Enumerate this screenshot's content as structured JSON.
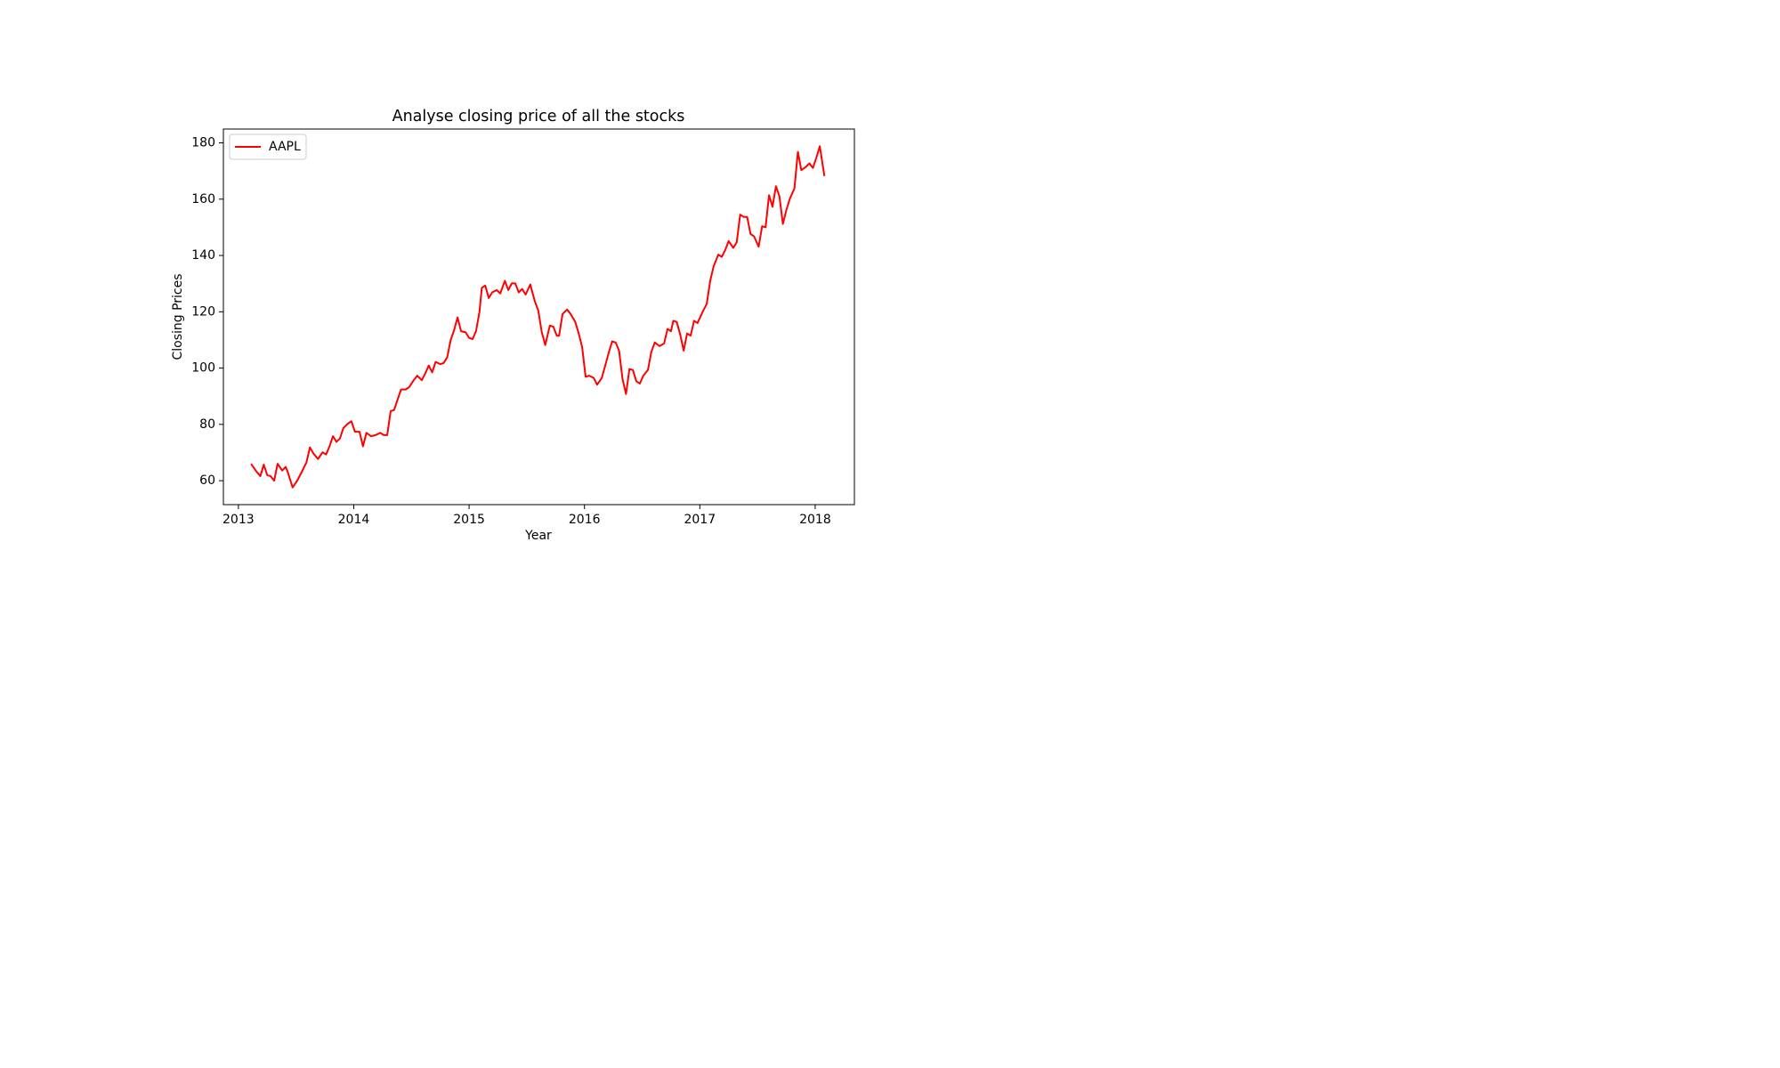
{
  "chart_data": {
    "type": "line",
    "title": "Analyse closing price of all the stocks",
    "x_label": "Year",
    "y_label": "Closing Prices",
    "xlim": [
      2012.87,
      2018.34
    ],
    "ylim": [
      51.5,
      184.9
    ],
    "xticks": [
      2013,
      2014,
      2015,
      2016,
      2017,
      2018
    ],
    "yticks": [
      60,
      80,
      100,
      120,
      140,
      160,
      180
    ],
    "grid": false,
    "legend_loc": "upper left",
    "x": [
      2013.11,
      2013.15,
      2013.19,
      2013.22,
      2013.25,
      2013.28,
      2013.31,
      2013.34,
      2013.38,
      2013.41,
      2013.43,
      2013.47,
      2013.51,
      2013.55,
      2013.59,
      2013.62,
      2013.65,
      2013.69,
      2013.73,
      2013.76,
      2013.79,
      2013.82,
      2013.85,
      2013.88,
      2013.91,
      2013.95,
      2013.98,
      2014.01,
      2014.05,
      2014.08,
      2014.11,
      2014.15,
      2014.19,
      2014.23,
      2014.26,
      2014.29,
      2014.32,
      2014.35,
      2014.38,
      2014.41,
      2014.45,
      2014.48,
      2014.52,
      2014.55,
      2014.59,
      2014.62,
      2014.65,
      2014.68,
      2014.71,
      2014.75,
      2014.78,
      2014.81,
      2014.84,
      2014.87,
      2014.9,
      2014.93,
      2014.97,
      2015.0,
      2015.03,
      2015.06,
      2015.09,
      2015.11,
      2015.14,
      2015.17,
      2015.2,
      2015.24,
      2015.27,
      2015.31,
      2015.34,
      2015.37,
      2015.4,
      2015.43,
      2015.46,
      2015.49,
      2015.53,
      2015.57,
      2015.6,
      2015.63,
      2015.66,
      2015.7,
      2015.73,
      2015.76,
      2015.78,
      2015.81,
      2015.85,
      2015.88,
      2015.92,
      2015.95,
      2015.98,
      2016.01,
      2016.04,
      2016.08,
      2016.11,
      2016.15,
      2016.18,
      2016.21,
      2016.24,
      2016.27,
      2016.3,
      2016.33,
      2016.36,
      2016.39,
      2016.42,
      2016.45,
      2016.48,
      2016.51,
      2016.55,
      2016.58,
      2016.61,
      2016.65,
      2016.69,
      2016.72,
      2016.75,
      2016.77,
      2016.8,
      2016.83,
      2016.86,
      2016.89,
      2016.92,
      2016.95,
      2016.98,
      2017.02,
      2017.06,
      2017.09,
      2017.12,
      2017.16,
      2017.19,
      2017.22,
      2017.25,
      2017.29,
      2017.32,
      2017.35,
      2017.38,
      2017.41,
      2017.44,
      2017.47,
      2017.51,
      2017.54,
      2017.57,
      2017.6,
      2017.63,
      2017.66,
      2017.69,
      2017.72,
      2017.75,
      2017.78,
      2017.82,
      2017.85,
      2017.88,
      2017.92,
      2017.95,
      2017.98,
      2018.01,
      2018.04,
      2018.08
    ],
    "series": [
      {
        "name": "AAPL",
        "color": "#ff0000",
        "values": [
          66.0,
          63.6,
          61.6,
          65.7,
          62.0,
          61.6,
          60.0,
          66.0,
          63.6,
          64.9,
          62.8,
          57.6,
          60.0,
          63.2,
          66.5,
          71.8,
          69.7,
          67.7,
          70.1,
          69.3,
          72.2,
          75.8,
          73.8,
          75.0,
          78.7,
          80.3,
          81.1,
          77.4,
          77.4,
          72.2,
          77.0,
          75.8,
          76.2,
          77.0,
          76.2,
          76.2,
          84.7,
          85.1,
          88.8,
          92.4,
          92.4,
          93.2,
          95.7,
          97.3,
          95.7,
          98.1,
          100.9,
          98.5,
          102.2,
          101.4,
          101.8,
          103.8,
          109.9,
          113.5,
          118.0,
          113.1,
          112.7,
          110.7,
          110.3,
          113.1,
          120.0,
          128.5,
          129.3,
          124.9,
          126.9,
          127.7,
          126.5,
          131.0,
          127.7,
          130.1,
          130.1,
          126.9,
          128.1,
          126.1,
          129.7,
          123.7,
          120.4,
          112.7,
          108.2,
          115.1,
          114.7,
          111.5,
          111.5,
          119.2,
          120.8,
          119.2,
          116.4,
          112.3,
          107.4,
          96.9,
          97.3,
          96.5,
          94.1,
          96.5,
          100.9,
          105.4,
          109.5,
          109.1,
          106.2,
          96.1,
          90.8,
          99.7,
          99.3,
          95.3,
          94.5,
          97.3,
          99.3,
          105.8,
          109.1,
          107.8,
          108.7,
          113.9,
          113.1,
          116.8,
          116.4,
          111.9,
          106.2,
          112.3,
          111.5,
          116.8,
          116.0,
          119.6,
          122.8,
          131.0,
          136.2,
          140.3,
          139.5,
          141.9,
          145.1,
          142.7,
          144.7,
          154.5,
          153.7,
          153.7,
          147.6,
          146.8,
          143.1,
          150.4,
          150.0,
          161.4,
          157.3,
          164.6,
          161.0,
          151.2,
          156.1,
          160.1,
          163.8,
          176.8,
          170.3,
          171.5,
          172.7,
          171.1,
          174.7,
          178.8,
          168.2
        ]
      }
    ]
  }
}
